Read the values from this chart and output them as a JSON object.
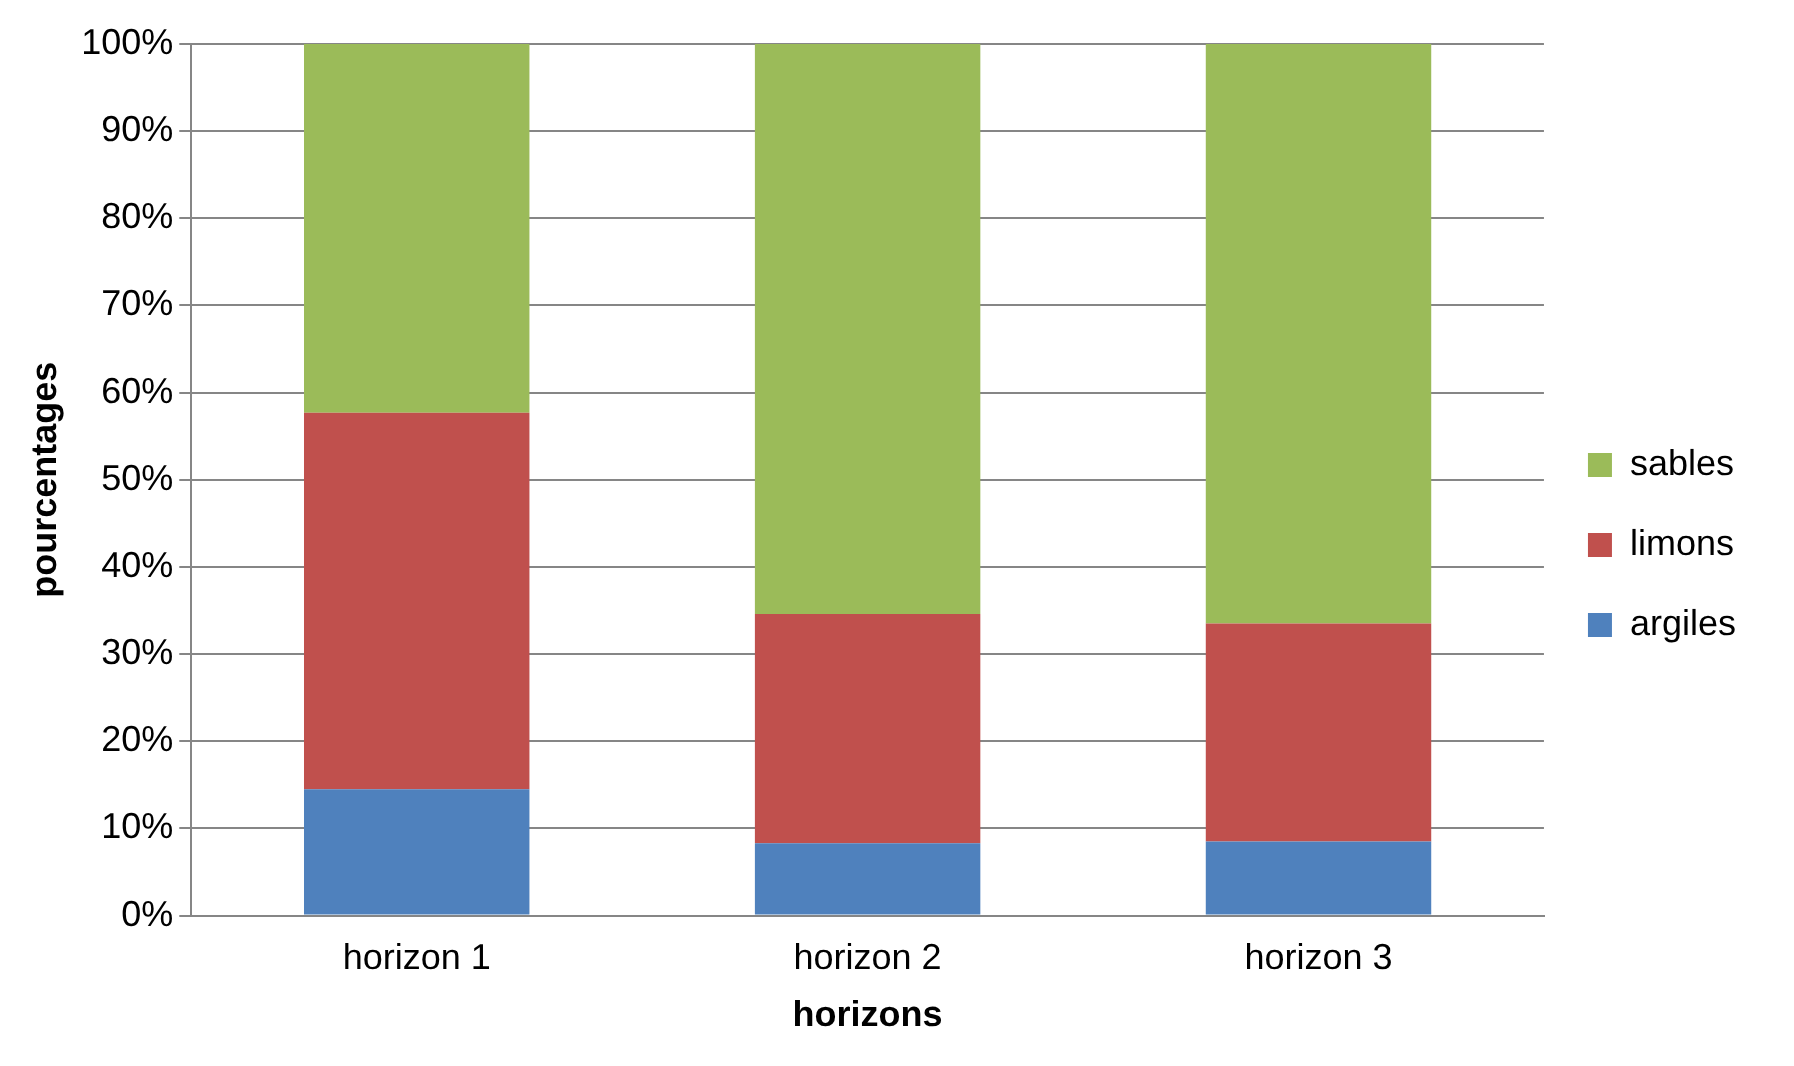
{
  "chart_data": {
    "type": "bar",
    "stacked": true,
    "xlabel": "horizons",
    "ylabel": "pourcentages",
    "categories": [
      "horizon 1",
      "horizon 2",
      "horizon 3"
    ],
    "series": [
      {
        "name": "argiles",
        "color": "#4f81bd",
        "values": [
          14.5,
          8.3,
          8.5
        ]
      },
      {
        "name": "limons",
        "color": "#c0504d",
        "values": [
          43.2,
          26.3,
          25.0
        ]
      },
      {
        "name": "sables",
        "color": "#9bbb59",
        "values": [
          42.3,
          65.4,
          66.5
        ]
      }
    ],
    "ylim": [
      0,
      100
    ],
    "yticks": [
      {
        "value": 0,
        "label": "0%"
      },
      {
        "value": 10,
        "label": "10%"
      },
      {
        "value": 20,
        "label": "20%"
      },
      {
        "value": 30,
        "label": "30%"
      },
      {
        "value": 40,
        "label": "40%"
      },
      {
        "value": 50,
        "label": "50%"
      },
      {
        "value": 60,
        "label": "60%"
      },
      {
        "value": 70,
        "label": "70%"
      },
      {
        "value": 80,
        "label": "80%"
      },
      {
        "value": 90,
        "label": "90%"
      },
      {
        "value": 100,
        "label": "100%"
      }
    ],
    "grid": "y",
    "legend": "right"
  }
}
